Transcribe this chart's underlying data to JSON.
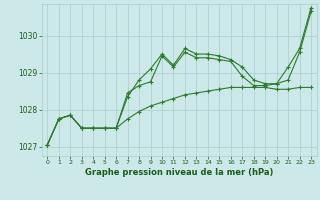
{
  "x": [
    0,
    1,
    2,
    3,
    4,
    5,
    6,
    7,
    8,
    9,
    10,
    11,
    12,
    13,
    14,
    15,
    16,
    17,
    18,
    19,
    20,
    21,
    22,
    23
  ],
  "line_flat": [
    1027.05,
    1027.75,
    1027.85,
    1027.5,
    1027.5,
    1027.5,
    1027.5,
    1027.75,
    1027.95,
    1028.1,
    1028.2,
    1028.3,
    1028.4,
    1028.45,
    1028.5,
    1028.55,
    1028.6,
    1028.6,
    1028.6,
    1028.6,
    1028.55,
    1028.55,
    1028.6,
    1028.6
  ],
  "line_mid": [
    1027.05,
    1027.75,
    1027.85,
    1027.5,
    1027.5,
    1027.5,
    1027.5,
    1028.45,
    1028.65,
    1028.75,
    1029.45,
    1029.15,
    1029.55,
    1029.4,
    1029.4,
    1029.35,
    1029.3,
    1028.9,
    1028.65,
    1028.65,
    1028.7,
    1028.8,
    1029.55,
    1030.65
  ],
  "line_top": [
    1027.05,
    1027.75,
    1027.85,
    1027.5,
    1027.5,
    1027.5,
    1027.5,
    1028.35,
    1028.8,
    1029.1,
    1029.5,
    1029.2,
    1029.65,
    1029.5,
    1029.5,
    1029.45,
    1029.35,
    1029.15,
    1028.8,
    1028.7,
    1028.7,
    1029.15,
    1029.65,
    1030.75
  ],
  "line_color": "#2d7a2d",
  "bg_color": "#cce8e8",
  "grid_color": "#aacece",
  "text_color": "#1a5c1a",
  "xlabel": "Graphe pression niveau de la mer (hPa)",
  "ylim": [
    1026.75,
    1030.85
  ],
  "xlim": [
    -0.5,
    23.5
  ],
  "yticks": [
    1027,
    1028,
    1029,
    1030
  ],
  "xticks": [
    0,
    1,
    2,
    3,
    4,
    5,
    6,
    7,
    8,
    9,
    10,
    11,
    12,
    13,
    14,
    15,
    16,
    17,
    18,
    19,
    20,
    21,
    22,
    23
  ],
  "marker": "+",
  "lw": 0.8,
  "ms": 3.5
}
